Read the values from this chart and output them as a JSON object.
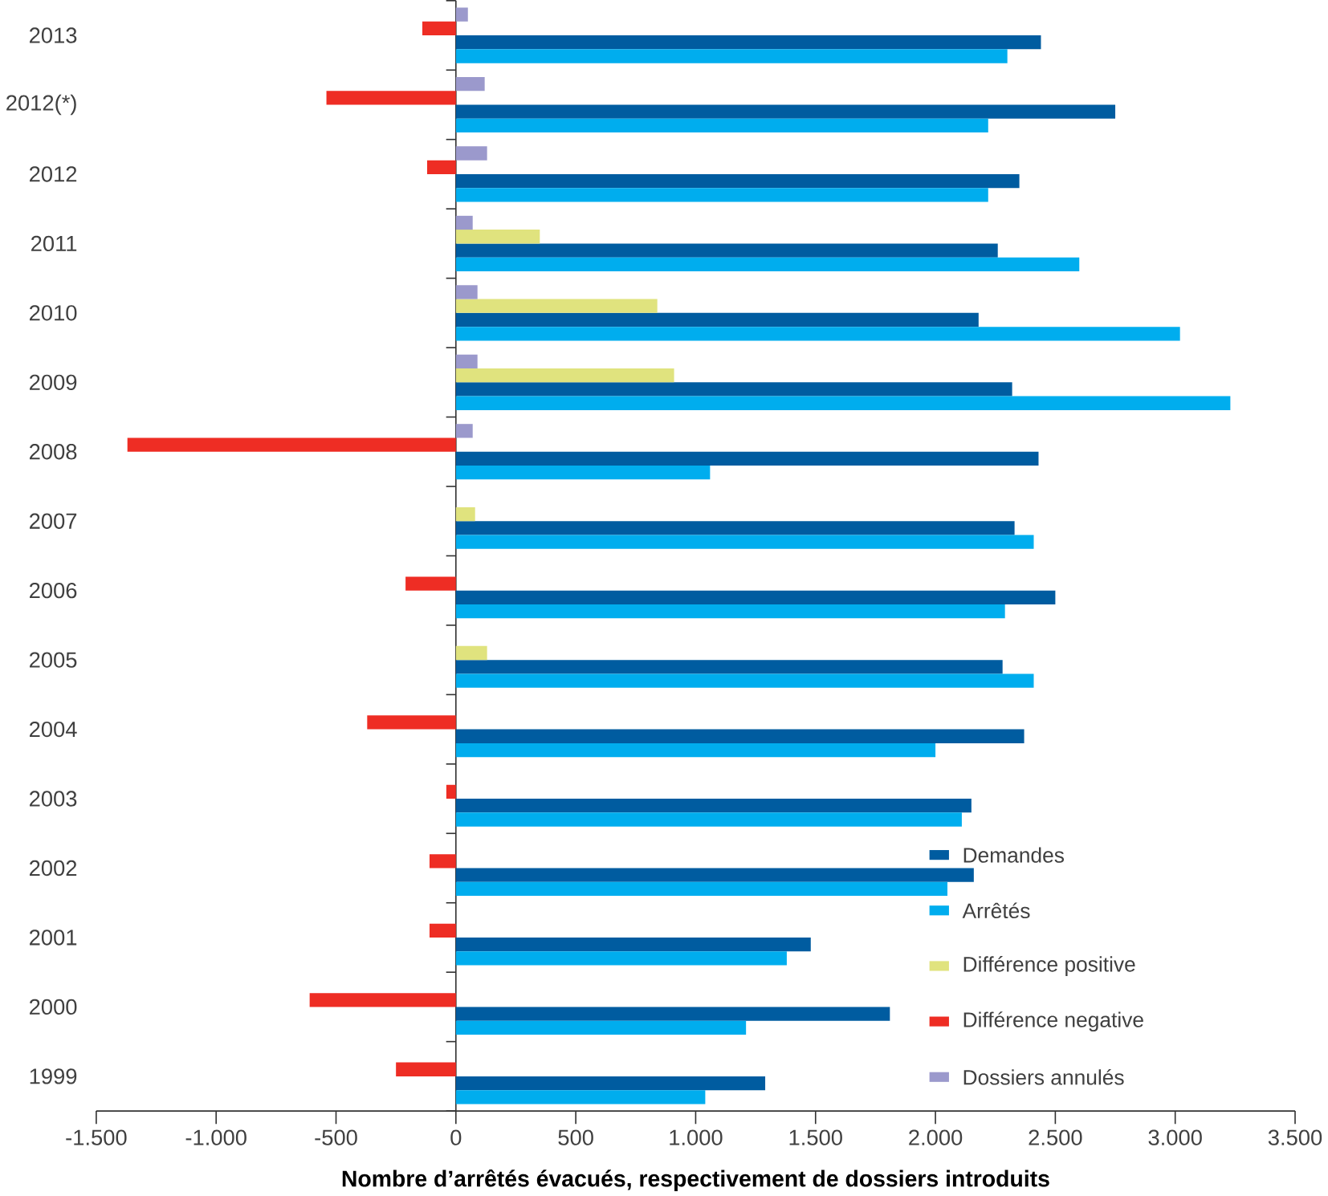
{
  "chart_data": {
    "type": "bar",
    "orientation": "horizontal",
    "xlabel": "Nombre d’arrêtés évacués, respectivement de dossiers introduits",
    "categories": [
      "2013",
      "2012(*)",
      "2012",
      "2011",
      "2010",
      "2009",
      "2008",
      "2007",
      "2006",
      "2005",
      "2004",
      "2003",
      "2002",
      "2001",
      "2000",
      "1999"
    ],
    "series": [
      {
        "name": "Demandes",
        "color": "#005ca0",
        "values": [
          2440,
          2750,
          2350,
          2260,
          2180,
          2320,
          2430,
          2330,
          2500,
          2280,
          2370,
          2150,
          2160,
          1480,
          1810,
          1290
        ]
      },
      {
        "name": "Arrêtés",
        "color": "#00adee",
        "values": [
          2300,
          2220,
          2220,
          2600,
          3020,
          3230,
          1060,
          2410,
          2290,
          2410,
          2000,
          2110,
          2050,
          1380,
          1210,
          1040
        ]
      },
      {
        "name": "Différence positive",
        "color": "#e0e37e",
        "values": [
          null,
          null,
          null,
          350,
          840,
          910,
          null,
          80,
          null,
          130,
          null,
          null,
          null,
          null,
          null,
          null
        ]
      },
      {
        "name": "Différence negative",
        "color": "#ee2d24",
        "values": [
          -140,
          -540,
          -120,
          null,
          null,
          null,
          -1370,
          null,
          -210,
          null,
          -370,
          -40,
          -110,
          -110,
          -610,
          -250
        ]
      },
      {
        "name": "Dossiers annulés",
        "color": "#9b99cc",
        "values": [
          50,
          120,
          130,
          70,
          90,
          90,
          70,
          null,
          null,
          null,
          null,
          null,
          null,
          null,
          null,
          null
        ]
      }
    ],
    "xlim": [
      -1500,
      3500
    ],
    "xticks": [
      {
        "value": -1500,
        "label": "-1.500"
      },
      {
        "value": -1000,
        "label": "-1.000"
      },
      {
        "value": -500,
        "label": "-500"
      },
      {
        "value": 0,
        "label": "0"
      },
      {
        "value": 500,
        "label": "500"
      },
      {
        "value": 1000,
        "label": "1.000"
      },
      {
        "value": 1500,
        "label": "1.500"
      },
      {
        "value": 2000,
        "label": "2.000"
      },
      {
        "value": 2500,
        "label": "2.500"
      },
      {
        "value": 3000,
        "label": "3.000"
      },
      {
        "value": 3500,
        "label": "3.500"
      }
    ],
    "legend": "bottom right"
  }
}
